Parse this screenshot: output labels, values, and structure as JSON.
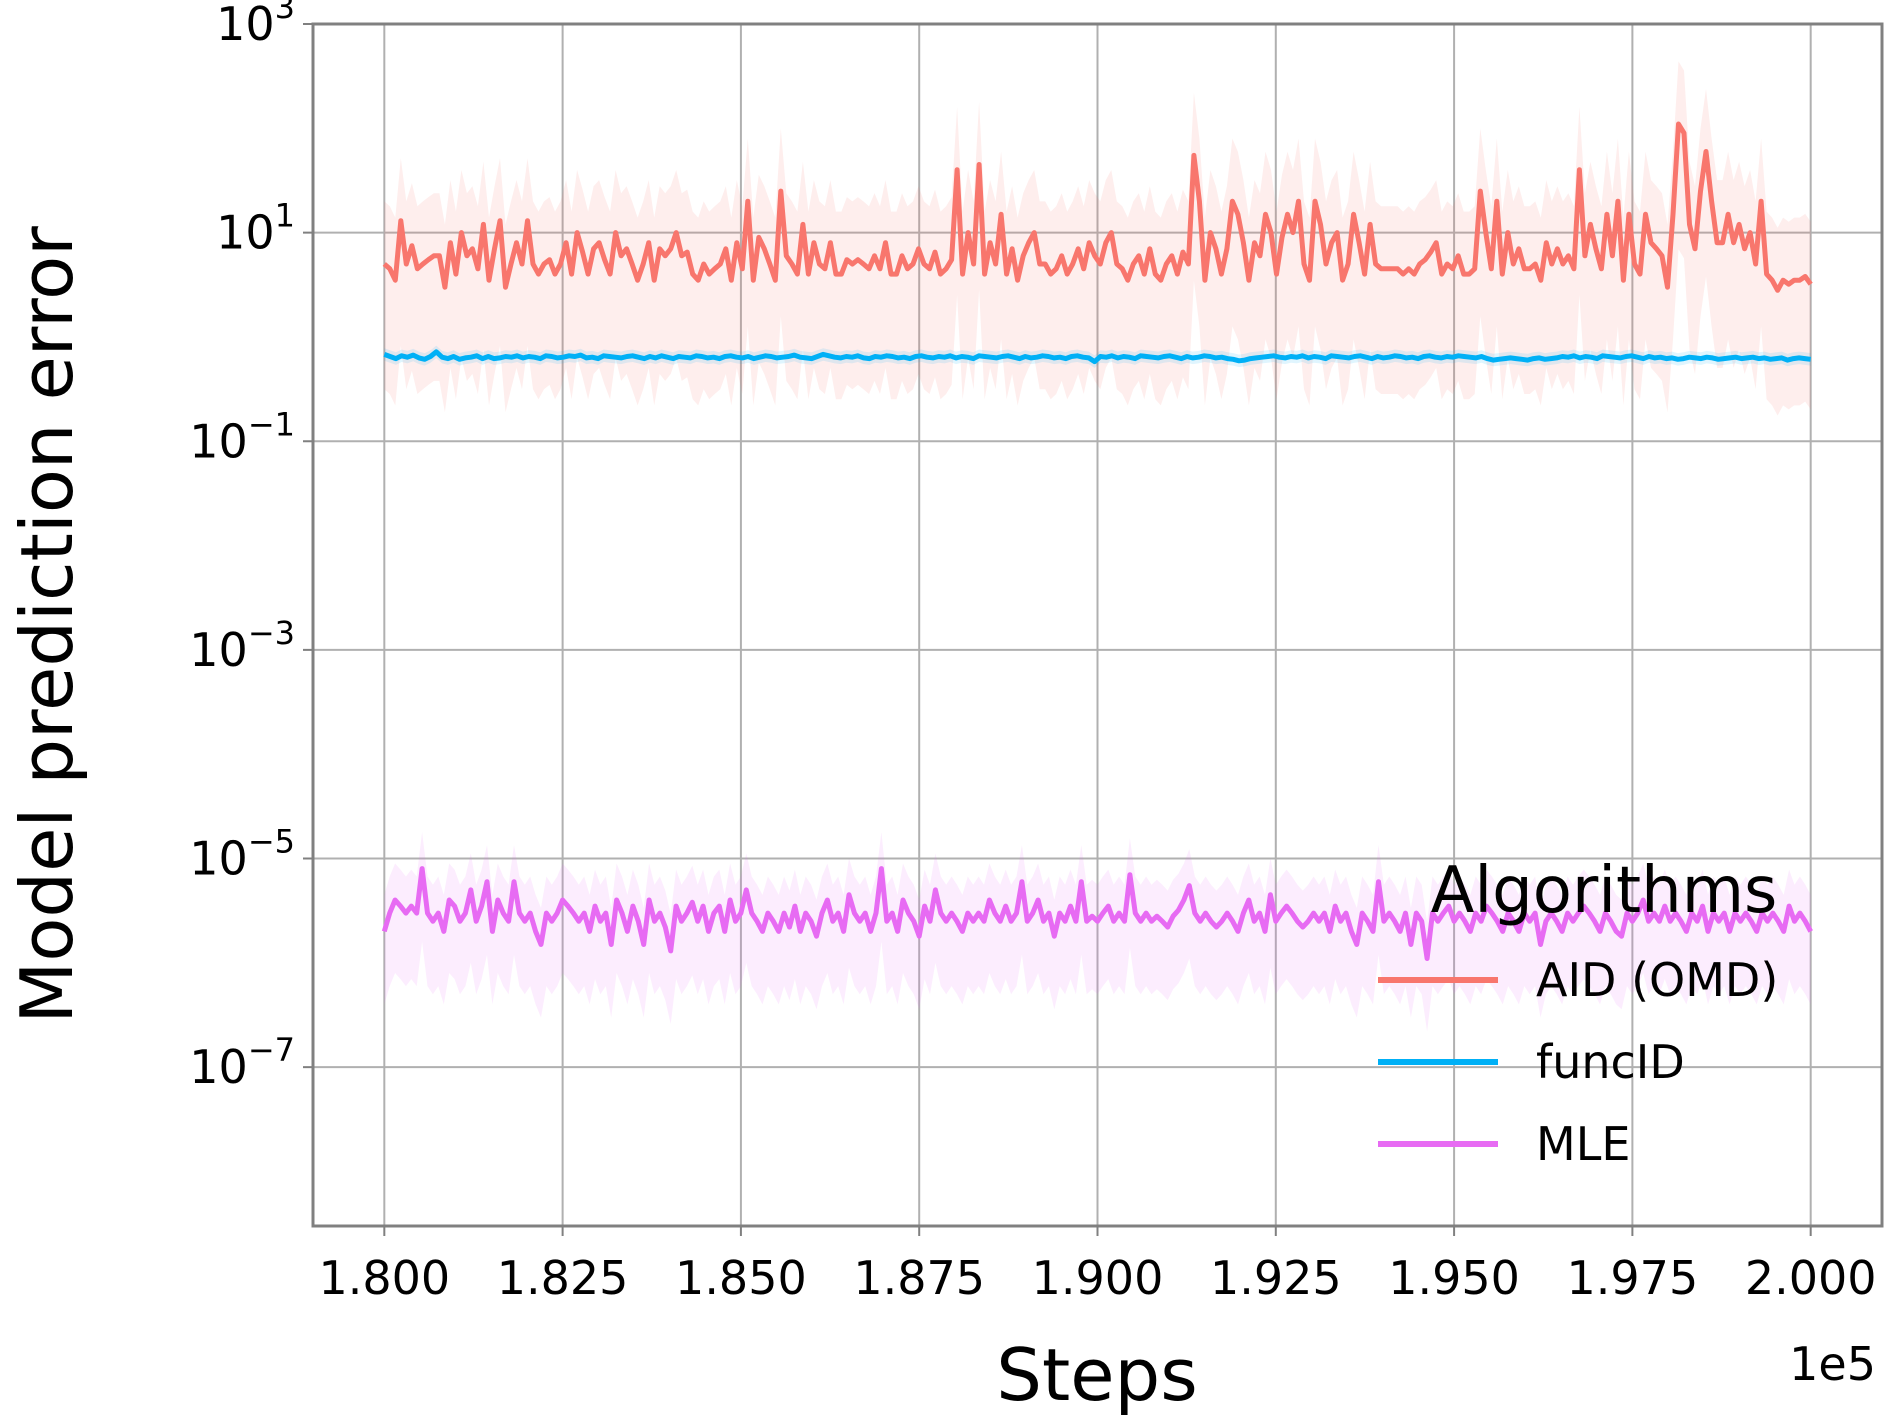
{
  "chart_data": {
    "type": "line",
    "title": "",
    "xlabel": "Steps",
    "ylabel": "Model prediction error",
    "x_offset_label": "1e5",
    "x_tick_labels": [
      "1.800",
      "1.825",
      "1.850",
      "1.875",
      "1.900",
      "1.925",
      "1.950",
      "1.975",
      "2.000"
    ],
    "y_tick_labels": [
      {
        "base": "10",
        "exp": "3"
      },
      {
        "base": "10",
        "exp": "1"
      },
      {
        "base": "10",
        "exp": "−1"
      },
      {
        "base": "10",
        "exp": "−3"
      },
      {
        "base": "10",
        "exp": "−5"
      },
      {
        "base": "10",
        "exp": "−7"
      }
    ],
    "xlim": [
      1.79,
      2.01
    ],
    "ylim": [
      3e-09,
      1000
    ],
    "y_scale": "log",
    "grid": true,
    "legend": {
      "title": "Algorithms",
      "placement": "lower-right"
    },
    "series": [
      {
        "name": "AID (OMD)",
        "color": "#f8766d",
        "x_start": 1.8,
        "x_end": 2.0,
        "band_log10_offset": [
          -1.2,
          0.6
        ],
        "values": [
          5.0,
          4.5,
          3.5,
          13.0,
          5.0,
          7.5,
          4.5,
          5.0,
          5.5,
          6.0,
          6.0,
          3.0,
          8.0,
          4.0,
          10.0,
          6.0,
          7.0,
          4.5,
          12.0,
          3.5,
          7.0,
          13.0,
          3.0,
          5.0,
          8.0,
          5.0,
          13.0,
          5.0,
          4.0,
          5.0,
          5.5,
          4.0,
          5.0,
          8.0,
          4.0,
          10.0,
          6.5,
          4.0,
          7.0,
          8.0,
          5.5,
          4.0,
          10.0,
          6.0,
          7.0,
          5.0,
          3.5,
          5.0,
          8.0,
          3.5,
          7.0,
          6.0,
          7.0,
          10.0,
          6.0,
          6.5,
          4.0,
          3.5,
          5.0,
          4.0,
          4.5,
          5.0,
          7.0,
          3.5,
          8.0,
          4.5,
          20.0,
          3.5,
          9.0,
          7.0,
          5.0,
          3.5,
          25.0,
          6.0,
          5.0,
          4.0,
          12.0,
          4.0,
          8.0,
          5.0,
          4.5,
          8.0,
          4.0,
          4.0,
          5.5,
          5.0,
          5.5,
          5.0,
          4.5,
          6.0,
          4.5,
          8.0,
          4.0,
          4.0,
          6.0,
          4.5,
          5.0,
          7.0,
          5.0,
          4.5,
          6.5,
          4.0,
          4.5,
          5.5,
          40.0,
          4.0,
          10.0,
          5.0,
          45.0,
          4.0,
          8.0,
          5.0,
          15.0,
          4.0,
          7.0,
          3.5,
          6.0,
          8.0,
          10.0,
          5.0,
          5.0,
          4.0,
          4.5,
          6.0,
          4.0,
          5.0,
          7.0,
          4.5,
          8.0,
          6.0,
          5.0,
          8.0,
          10.0,
          5.0,
          4.5,
          3.5,
          5.0,
          6.0,
          4.0,
          7.0,
          4.0,
          3.5,
          5.0,
          6.0,
          4.0,
          6.5,
          5.0,
          55.0,
          20.0,
          3.5,
          10.0,
          7.0,
          4.0,
          7.0,
          20.0,
          15.0,
          8.0,
          3.5,
          8.0,
          6.0,
          15.0,
          10.0,
          4.0,
          9.0,
          15.0,
          10.0,
          20.0,
          5.0,
          3.5,
          20.0,
          12.0,
          5.0,
          8.0,
          10.0,
          3.5,
          5.0,
          15.0,
          8.0,
          4.0,
          12.0,
          5.0,
          4.5,
          4.5,
          4.5,
          4.5,
          4.0,
          4.5,
          4.0,
          5.0,
          5.5,
          6.5,
          8.0,
          4.0,
          5.0,
          4.5,
          6.0,
          4.0,
          4.0,
          4.5,
          25.0,
          10.0,
          4.5,
          20.0,
          4.0,
          10.0,
          5.0,
          7.0,
          4.5,
          4.5,
          5.0,
          3.5,
          8.0,
          5.0,
          7.0,
          5.0,
          6.0,
          4.5,
          40.0,
          6.0,
          12.0,
          7.0,
          4.5,
          15.0,
          6.0,
          20.0,
          3.5,
          15.0,
          5.0,
          4.0,
          15.0,
          8.0,
          7.0,
          6.0,
          3.0,
          15.0,
          110.0,
          90.0,
          12.0,
          7.0,
          25.0,
          60.0,
          20.0,
          8.0,
          8.0,
          15.0,
          8.0,
          12.0,
          7.0,
          10.0,
          5.0,
          20.0,
          4.0,
          3.5,
          2.8,
          3.5,
          3.2,
          3.5,
          3.5,
          3.8,
          3.2
        ]
      },
      {
        "name": "funcID",
        "color": "#00b0f6",
        "x_start": 1.8,
        "x_end": 2.0,
        "band_log10_offset": [
          -0.06,
          0.06
        ],
        "values": [
          0.68,
          0.65,
          0.62,
          0.66,
          0.64,
          0.67,
          0.63,
          0.61,
          0.65,
          0.72,
          0.64,
          0.62,
          0.65,
          0.61,
          0.63,
          0.64,
          0.66,
          0.62,
          0.65,
          0.62,
          0.63,
          0.65,
          0.64,
          0.66,
          0.63,
          0.65,
          0.64,
          0.62,
          0.66,
          0.65,
          0.63,
          0.64,
          0.66,
          0.65,
          0.67,
          0.63,
          0.64,
          0.62,
          0.66,
          0.65,
          0.64,
          0.63,
          0.65,
          0.66,
          0.64,
          0.62,
          0.65,
          0.63,
          0.66,
          0.64,
          0.62,
          0.65,
          0.64,
          0.63,
          0.66,
          0.65,
          0.63,
          0.64,
          0.62,
          0.65,
          0.66,
          0.64,
          0.63,
          0.65,
          0.62,
          0.64,
          0.66,
          0.65,
          0.63,
          0.64,
          0.65,
          0.67,
          0.64,
          0.63,
          0.62,
          0.65,
          0.68,
          0.66,
          0.64,
          0.63,
          0.65,
          0.64,
          0.66,
          0.63,
          0.62,
          0.65,
          0.64,
          0.66,
          0.65,
          0.63,
          0.64,
          0.62,
          0.65,
          0.66,
          0.64,
          0.63,
          0.65,
          0.64,
          0.66,
          0.63,
          0.65,
          0.64,
          0.62,
          0.66,
          0.65,
          0.64,
          0.63,
          0.65,
          0.66,
          0.64,
          0.62,
          0.65,
          0.63,
          0.64,
          0.66,
          0.65,
          0.63,
          0.64,
          0.62,
          0.65,
          0.66,
          0.64,
          0.63,
          0.58,
          0.65,
          0.64,
          0.66,
          0.63,
          0.65,
          0.64,
          0.62,
          0.66,
          0.65,
          0.64,
          0.63,
          0.65,
          0.66,
          0.64,
          0.62,
          0.65,
          0.63,
          0.64,
          0.66,
          0.65,
          0.63,
          0.64,
          0.62,
          0.61,
          0.59,
          0.6,
          0.62,
          0.63,
          0.64,
          0.65,
          0.66,
          0.64,
          0.63,
          0.65,
          0.64,
          0.66,
          0.63,
          0.65,
          0.64,
          0.62,
          0.66,
          0.65,
          0.64,
          0.63,
          0.65,
          0.66,
          0.64,
          0.62,
          0.65,
          0.63,
          0.64,
          0.66,
          0.65,
          0.63,
          0.64,
          0.62,
          0.65,
          0.66,
          0.64,
          0.63,
          0.65,
          0.64,
          0.66,
          0.65,
          0.64,
          0.63,
          0.65,
          0.62,
          0.6,
          0.61,
          0.62,
          0.63,
          0.62,
          0.61,
          0.6,
          0.62,
          0.63,
          0.61,
          0.62,
          0.63,
          0.65,
          0.64,
          0.66,
          0.63,
          0.65,
          0.64,
          0.62,
          0.66,
          0.65,
          0.64,
          0.63,
          0.65,
          0.66,
          0.64,
          0.62,
          0.65,
          0.63,
          0.64,
          0.62,
          0.63,
          0.61,
          0.62,
          0.64,
          0.63,
          0.62,
          0.64,
          0.63,
          0.61,
          0.62,
          0.63,
          0.64,
          0.62,
          0.63,
          0.64,
          0.62,
          0.63,
          0.61,
          0.62,
          0.63,
          0.6,
          0.62,
          0.63,
          0.62,
          0.61
        ]
      },
      {
        "name": "MLE",
        "color": "#e76bf3",
        "x_start": 1.8,
        "x_end": 2.0,
        "band_log10_offset": [
          -0.7,
          0.35
        ],
        "values": [
          2e-06,
          3e-06,
          4e-06,
          3.5e-06,
          3e-06,
          3.5e-06,
          3e-06,
          8e-06,
          3e-06,
          2.5e-06,
          3e-06,
          2e-06,
          4e-06,
          3.5e-06,
          2.5e-06,
          3e-06,
          5e-06,
          2.5e-06,
          3.5e-06,
          6e-06,
          2e-06,
          4e-06,
          3e-06,
          2.5e-06,
          6e-06,
          3e-06,
          2.5e-06,
          3e-06,
          2e-06,
          1.5e-06,
          3e-06,
          2.5e-06,
          3e-06,
          4e-06,
          3.5e-06,
          3e-06,
          2.5e-06,
          3e-06,
          2e-06,
          3.5e-06,
          2.5e-06,
          3e-06,
          1.5e-06,
          4e-06,
          3e-06,
          2e-06,
          3.5e-06,
          2.5e-06,
          1.5e-06,
          4e-06,
          2.5e-06,
          3e-06,
          2.2e-06,
          1.3e-06,
          3.5e-06,
          2.5e-06,
          3e-06,
          3.8e-06,
          2.5e-06,
          3.5e-06,
          2e-06,
          3e-06,
          3.5e-06,
          2e-06,
          4e-06,
          2.5e-06,
          3e-06,
          5e-06,
          3e-06,
          2.5e-06,
          2e-06,
          3e-06,
          2.5e-06,
          2e-06,
          3e-06,
          2.2e-06,
          3.5e-06,
          2e-06,
          3e-06,
          2.5e-06,
          1.8e-06,
          3e-06,
          4e-06,
          2.5e-06,
          3e-06,
          2e-06,
          4.5e-06,
          3e-06,
          2.5e-06,
          3e-06,
          2e-06,
          3e-06,
          8e-06,
          2.5e-06,
          3e-06,
          2e-06,
          4e-06,
          3e-06,
          2.5e-06,
          1.8e-06,
          3.5e-06,
          2.5e-06,
          5e-06,
          3e-06,
          2.5e-06,
          3e-06,
          2.5e-06,
          2e-06,
          3e-06,
          2.5e-06,
          3e-06,
          2.5e-06,
          4e-06,
          3e-06,
          2.5e-06,
          3.5e-06,
          2.5e-06,
          3e-06,
          6e-06,
          2.5e-06,
          3e-06,
          4e-06,
          2.5e-06,
          3e-06,
          1.8e-06,
          3e-06,
          2.5e-06,
          3.5e-06,
          2.5e-06,
          6e-06,
          2.5e-06,
          2.8e-06,
          2.5e-06,
          3e-06,
          3.5e-06,
          2.5e-06,
          3e-06,
          2.5e-06,
          7e-06,
          3e-06,
          2.5e-06,
          3e-06,
          2.5e-06,
          2.8e-06,
          2.5e-06,
          2.2e-06,
          2.8e-06,
          3.2e-06,
          4e-06,
          5.5e-06,
          3e-06,
          2.5e-06,
          3e-06,
          2.5e-06,
          2.2e-06,
          2.5e-06,
          3e-06,
          2.5e-06,
          2e-06,
          3e-06,
          4e-06,
          2.5e-06,
          3e-06,
          2e-06,
          4.5e-06,
          2.5e-06,
          3e-06,
          3.5e-06,
          3e-06,
          2.5e-06,
          2.2e-06,
          2.5e-06,
          3e-06,
          2.5e-06,
          3e-06,
          2e-06,
          3.5e-06,
          2.5e-06,
          3e-06,
          2e-06,
          1.5e-06,
          3e-06,
          2.5e-06,
          2e-06,
          6e-06,
          2.5e-06,
          3e-06,
          2.5e-06,
          2e-06,
          3e-06,
          1.5e-06,
          3e-06,
          2.5e-06,
          1.1e-06,
          3e-06,
          2.5e-06,
          3e-06,
          3.5e-06,
          2.5e-06,
          3e-06,
          2.5e-06,
          2e-06,
          3e-06,
          2.5e-06,
          3.5e-06,
          3e-06,
          2.5e-06,
          2e-06,
          3e-06,
          2.5e-06,
          2e-06,
          3e-06,
          2.5e-06,
          3e-06,
          1.5e-06,
          2.5e-06,
          3e-06,
          2.5e-06,
          2e-06,
          3e-06,
          2.5e-06,
          3e-06,
          3.5e-06,
          3e-06,
          2.5e-06,
          2e-06,
          3e-06,
          2.5e-06,
          2e-06,
          1.8e-06,
          3e-06,
          2.5e-06,
          3e-06,
          4e-06,
          2.5e-06,
          3e-06,
          2.5e-06,
          3.5e-06,
          2.5e-06,
          3e-06,
          2.5e-06,
          2e-06,
          3e-06,
          2.5e-06,
          3.5e-06,
          2e-06,
          3e-06,
          2.5e-06,
          3e-06,
          2e-06,
          3e-06,
          2.5e-06,
          3e-06,
          2.5e-06,
          2e-06,
          3e-06,
          2.5e-06,
          3e-06,
          2.5e-06,
          2e-06,
          3.5e-06,
          2.5e-06,
          3e-06,
          2.5e-06,
          2e-06
        ]
      }
    ]
  }
}
